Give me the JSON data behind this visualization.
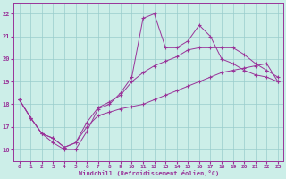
{
  "xlabel": "Windchill (Refroidissement éolien,°C)",
  "bg_color": "#cceee8",
  "grid_color": "#99cccc",
  "line_color": "#993399",
  "xlim": [
    -0.5,
    23.5
  ],
  "ylim": [
    15.5,
    22.5
  ],
  "xticks": [
    0,
    1,
    2,
    3,
    4,
    5,
    6,
    7,
    8,
    9,
    10,
    11,
    12,
    13,
    14,
    15,
    16,
    17,
    18,
    19,
    20,
    21,
    22,
    23
  ],
  "yticks": [
    16,
    17,
    18,
    19,
    20,
    21,
    22
  ],
  "line1_x": [
    0,
    1,
    2,
    3,
    4,
    5,
    6,
    7,
    8,
    9,
    10,
    11,
    12,
    13,
    14,
    15,
    16,
    17,
    18,
    19,
    20,
    21,
    22,
    23
  ],
  "line1_y": [
    18.2,
    17.4,
    16.7,
    16.3,
    16.0,
    16.0,
    16.8,
    17.8,
    18.0,
    18.5,
    19.2,
    21.8,
    22.0,
    20.5,
    20.5,
    20.8,
    21.5,
    21.0,
    20.0,
    19.8,
    19.5,
    19.3,
    19.2,
    19.0
  ],
  "line2_x": [
    0,
    1,
    2,
    3,
    4,
    5,
    6,
    7,
    8,
    9,
    10,
    11,
    12,
    13,
    14,
    15,
    16,
    17,
    18,
    19,
    20,
    21,
    22,
    23
  ],
  "line2_y": [
    18.2,
    17.4,
    16.7,
    16.5,
    16.1,
    16.3,
    17.2,
    17.85,
    18.1,
    18.4,
    19.0,
    19.4,
    19.7,
    19.9,
    20.1,
    20.4,
    20.5,
    20.5,
    20.5,
    20.5,
    20.2,
    19.8,
    19.5,
    19.2
  ],
  "line3_x": [
    0,
    1,
    2,
    3,
    4,
    5,
    6,
    7,
    8,
    9,
    10,
    11,
    12,
    13,
    14,
    15,
    16,
    17,
    18,
    19,
    20,
    21,
    22,
    23
  ],
  "line3_y": [
    18.2,
    17.4,
    16.7,
    16.5,
    16.1,
    16.3,
    17.0,
    17.5,
    17.65,
    17.8,
    17.9,
    18.0,
    18.2,
    18.4,
    18.6,
    18.8,
    19.0,
    19.2,
    19.4,
    19.5,
    19.6,
    19.7,
    19.8,
    19.0
  ]
}
